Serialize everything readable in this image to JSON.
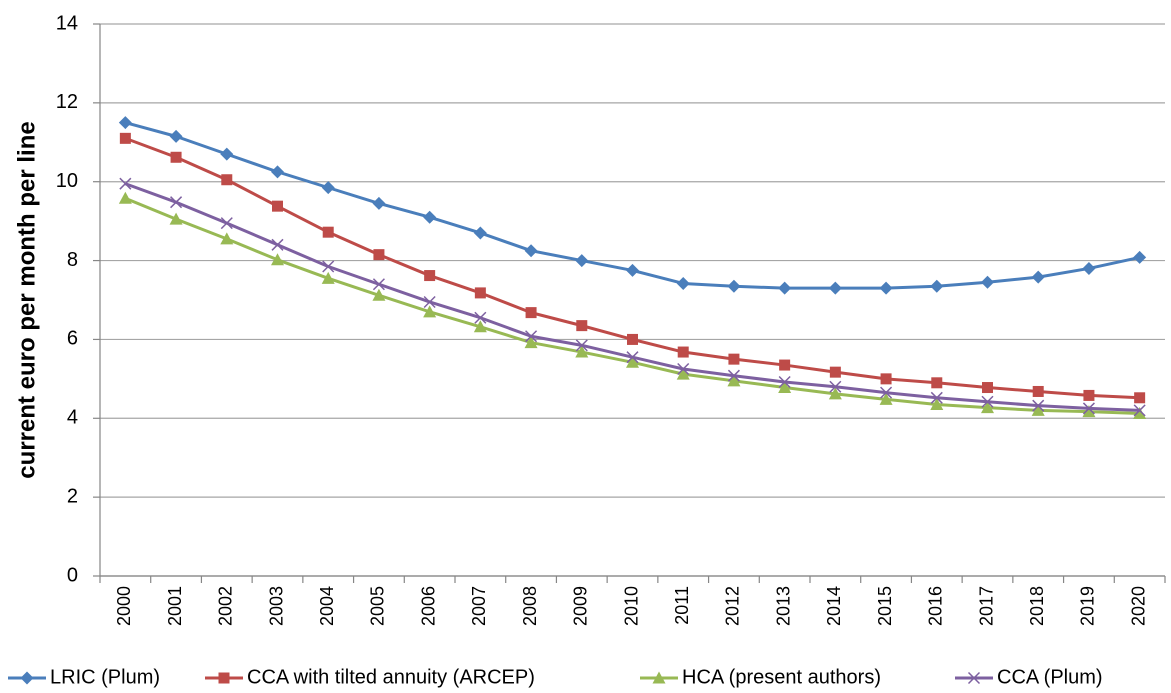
{
  "chart_data": {
    "type": "line",
    "ylabel": "current euro per month per line",
    "categories": [
      "2000",
      "2001",
      "2002",
      "2003",
      "2004",
      "2005",
      "2006",
      "2007",
      "2008",
      "2009",
      "2010",
      "2011",
      "2012",
      "2013",
      "2014",
      "2015",
      "2016",
      "2017",
      "2018",
      "2019",
      "2020"
    ],
    "series": [
      {
        "name": "LRIC (Plum)",
        "color": "#4a7ebb",
        "marker": "diamond",
        "values": [
          11.5,
          11.15,
          10.7,
          10.25,
          9.85,
          9.45,
          9.1,
          8.7,
          8.25,
          8.0,
          7.75,
          7.42,
          7.35,
          7.3,
          7.3,
          7.3,
          7.35,
          7.45,
          7.58,
          7.8,
          8.08
        ]
      },
      {
        "name": "CCA with tilted annuity (ARCEP)",
        "color": "#be4b48",
        "marker": "square",
        "values": [
          11.1,
          10.62,
          10.05,
          9.38,
          8.72,
          8.15,
          7.62,
          7.18,
          6.68,
          6.35,
          6.0,
          5.68,
          5.5,
          5.35,
          5.17,
          5.0,
          4.9,
          4.78,
          4.68,
          4.58,
          4.52
        ]
      },
      {
        "name": "HCA (present authors)",
        "color": "#98b954",
        "marker": "triangle",
        "values": [
          9.58,
          9.05,
          8.55,
          8.02,
          7.55,
          7.12,
          6.7,
          6.32,
          5.92,
          5.68,
          5.42,
          5.12,
          4.95,
          4.78,
          4.62,
          4.48,
          4.35,
          4.27,
          4.2,
          4.17,
          4.12
        ]
      },
      {
        "name": "CCA (Plum)",
        "color": "#7d60a0",
        "marker": "x",
        "values": [
          9.95,
          9.48,
          8.95,
          8.4,
          7.85,
          7.4,
          6.95,
          6.55,
          6.08,
          5.85,
          5.55,
          5.25,
          5.08,
          4.92,
          4.8,
          4.65,
          4.52,
          4.42,
          4.32,
          4.25,
          4.2
        ]
      }
    ],
    "ylim": [
      0,
      14
    ],
    "yticks": [
      0,
      2,
      4,
      6,
      8,
      10,
      12,
      14
    ],
    "grid": true,
    "legend": "bottom"
  }
}
